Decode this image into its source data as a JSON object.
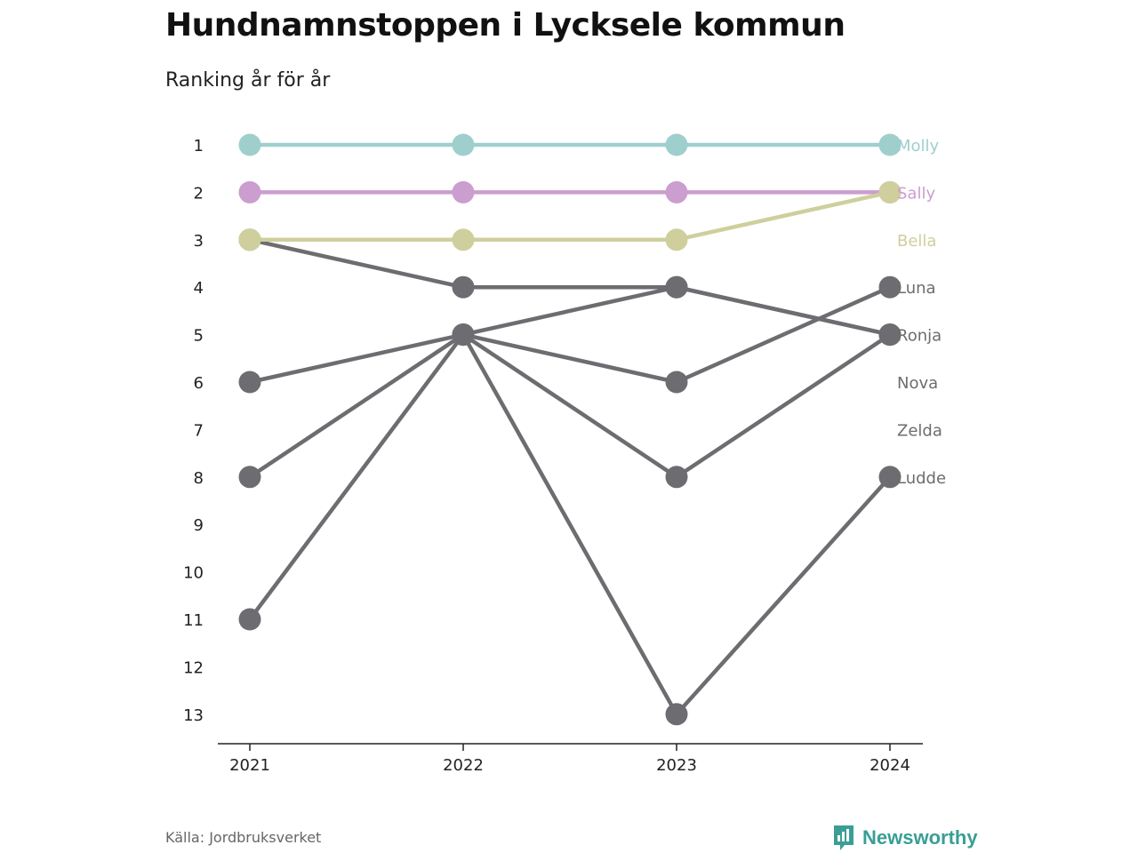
{
  "header": {
    "title": "Hundnamnstoppen i Lycksele kommun",
    "subtitle": "Ranking år för år"
  },
  "footer": {
    "source": "Källa: Jordbruksverket",
    "brand": "Newsworthy",
    "brand_icon": "newsworthy-logo-icon"
  },
  "colors": {
    "Molly": "#9ecfcd",
    "Sally": "#cc9dcf",
    "Bella": "#cfcf9d",
    "other": "#6d6c70",
    "axis": "#222222",
    "brand": "#3a9e94"
  },
  "chart_data": {
    "type": "line",
    "title": "Hundnamnstoppen i Lycksele kommun",
    "subtitle": "Ranking år för år",
    "x": [
      "2021",
      "2022",
      "2023",
      "2024"
    ],
    "ylim": [
      1,
      13
    ],
    "y_reversed": true,
    "y_ticks": [
      1,
      2,
      3,
      4,
      5,
      6,
      7,
      8,
      9,
      10,
      11,
      12,
      13
    ],
    "grid": false,
    "series": [
      {
        "name": "Molly",
        "values": [
          1,
          1,
          1,
          1
        ],
        "label_rank": 1
      },
      {
        "name": "Sally",
        "values": [
          2,
          2,
          2,
          2
        ],
        "label_rank": 2
      },
      {
        "name": "Bella",
        "values": [
          3,
          3,
          3,
          2
        ],
        "label_rank": 3
      },
      {
        "name": "Luna",
        "values": [
          6,
          5,
          6,
          4
        ],
        "label_rank": 4
      },
      {
        "name": "Ronja",
        "values": [
          3,
          4,
          4,
          5
        ],
        "label_rank": 5
      },
      {
        "name": "Nova",
        "values": [
          8,
          5,
          4,
          5
        ],
        "label_rank": 6
      },
      {
        "name": "Zelda",
        "values": [
          11,
          5,
          8,
          5
        ],
        "label_rank": 7
      },
      {
        "name": "Ludde",
        "values": [
          null,
          5,
          13,
          8
        ],
        "label_rank": 8
      }
    ],
    "source": "Källa: Jordbruksverket"
  }
}
